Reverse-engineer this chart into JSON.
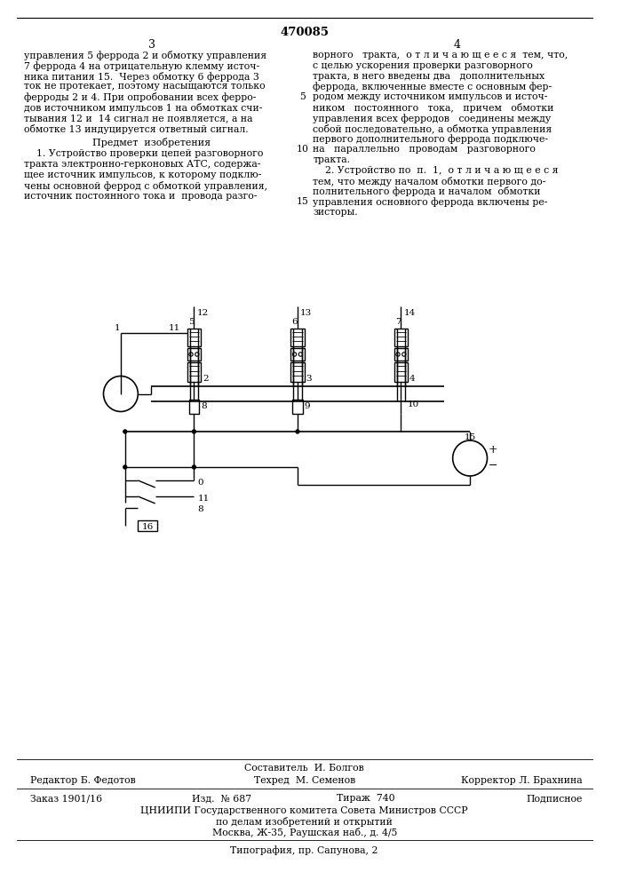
{
  "page_number": "470085",
  "col3_header": "3",
  "col4_header": "4",
  "col3_text_lines": [
    "управления 5 феррода 2 и обмотку управления",
    "7 феррода 4 на отрицательную клемму источ-",
    "ника питания 15.  Через обмотку 6 феррода 3",
    "ток не протекает, поэтому насыщаются только",
    "ферроды 2 и 4. При опробовании всех ферро-",
    "дов источником импульсов 1 на обмотках счи-",
    "тывания 12 и  14 сигнал не появляется, а на",
    "обмотке 13 индуцируется ответный сигнал."
  ],
  "subject_header": "Предмет  изобретения",
  "subject_col3_lines": [
    "    1. Устройство проверки цепей разговорного",
    "тракта электронно-герконовых АТС, содержа-",
    "щее источник импульсов, к которому подклю-",
    "чены основной феррод с обмоткой управления,",
    "источник постоянного тока и  провода разго-"
  ],
  "col4_text_lines": [
    "ворного   тракта,  о т л и ч а ю щ е е с я  тем, что,",
    "с целью ускорения проверки разговорного",
    "тракта, в него введены два   дополнительных",
    "феррода, включенные вместе с основным фер-",
    "родом между источником импульсов и источ-",
    "ником   постоянного   тока,   причем   обмотки",
    "управления всех ферродов   соединены между",
    "собой последовательно, а обмотка управления",
    "первого дополнительного феррода подключе-"
  ],
  "line_number_5": "5",
  "line_number_10": "10",
  "line_number_15": "15",
  "col4_cont_lines": [
    "на   параллельно   проводам   разговорного",
    "тракта.",
    "    2. Устройство по  п.  1,  о т л и ч а ю щ е е с я",
    "тем, что между началом обмотки первого до-",
    "полнительного феррода и началом  обмотки",
    "управления основного феррода включены ре-",
    "зисторы."
  ],
  "footer_compiler": "Составитель  И. Болгов",
  "footer_editor": "Редактор Б. Федотов",
  "footer_techred": "Техред  М. Семенов",
  "footer_corrector": "Корректор Л. Брахнина",
  "footer_order": "Заказ 1901/16",
  "footer_izd": "Изд.  № 687",
  "footer_tirazh": "Тираж  740",
  "footer_podpisnoe": "Подписное",
  "footer_org": "ЦНИИПИ Государственного комитета Совета Министров СССР",
  "footer_org2": "по делам изобретений и открытий",
  "footer_addr": "Москва, Ж-35, Раушская наб., д. 4/5",
  "footer_typo": "Типография, пр. Сапунова, 2",
  "bg_color": "#ffffff",
  "line_color": "#000000",
  "text_color": "#000000"
}
